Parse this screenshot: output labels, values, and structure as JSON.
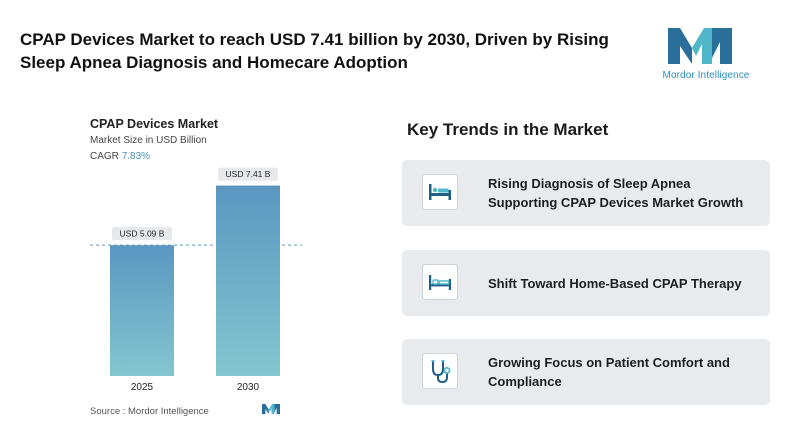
{
  "header": {
    "headline": "CPAP Devices Market to reach USD 7.41 billion by 2030, Driven by Rising Sleep Apnea Diagnosis and Homecare Adoption",
    "brand_name": "Mordor Intelligence"
  },
  "chart_panel": {
    "title": "CPAP Devices Market",
    "subtitle": "Market Size in USD Billion",
    "cagr_label": "CAGR",
    "cagr_value": "7.83%",
    "source": "Source : Mordor Intelligence"
  },
  "chart_data": {
    "type": "bar",
    "categories": [
      "2025",
      "2030"
    ],
    "values": [
      5.09,
      7.41
    ],
    "data_labels": [
      "USD 5.09 B",
      "USD 7.41 B"
    ],
    "title": "CPAP Devices Market",
    "ylabel": "Market Size in USD Billion",
    "ylim": [
      0,
      8
    ],
    "grid": false,
    "reference_line_at": 5.09,
    "colors": {
      "bar_top": "#5b96c1",
      "bar_bottom": "#84c6cf",
      "label_bg": "#e6e8ec",
      "ref_line": "#5b96c1"
    }
  },
  "trends": {
    "title": "Key Trends in the Market",
    "items": [
      {
        "icon": "hospital-bed-icon",
        "label": "Rising Diagnosis of Sleep Apnea Supporting CPAP Devices Market Growth"
      },
      {
        "icon": "home-bed-icon",
        "label": "Shift Toward Home-Based CPAP Therapy"
      },
      {
        "icon": "stethoscope-icon",
        "label": "Growing Focus on Patient Comfort and Compliance"
      }
    ]
  },
  "colors": {
    "accent_dark": "#1f5f86",
    "accent_light": "#4fb7c9",
    "card_bg": "#e8eaee"
  }
}
